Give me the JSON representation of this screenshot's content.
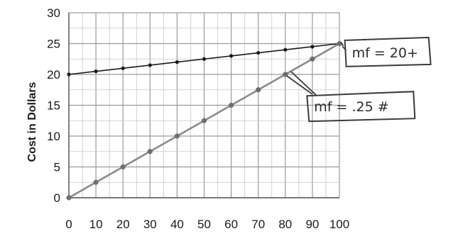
{
  "chart_data": {
    "type": "line",
    "ylabel": "Cost in Dollars",
    "xlabel": "",
    "xlim": [
      0,
      100
    ],
    "ylim": [
      0,
      30
    ],
    "x_ticks": [
      0,
      10,
      20,
      30,
      40,
      50,
      60,
      70,
      80,
      90,
      100
    ],
    "y_ticks": [
      0,
      5,
      10,
      15,
      20,
      25,
      30
    ],
    "grid": true,
    "series": [
      {
        "color": "#1a1a1a",
        "x": [
          0,
          10,
          20,
          30,
          40,
          50,
          60,
          70,
          80,
          90,
          100
        ],
        "y": [
          20,
          20.5,
          21,
          21.5,
          22,
          22.5,
          23,
          23.5,
          24,
          24.5,
          25
        ]
      },
      {
        "color": "#8a8a8a",
        "x": [
          0,
          10,
          20,
          30,
          40,
          50,
          60,
          70,
          80,
          90,
          100
        ],
        "y": [
          0,
          2.5,
          5,
          7.5,
          10,
          12.5,
          15,
          17.5,
          20,
          22.5,
          25
        ]
      }
    ],
    "annotations": [
      {
        "text": "mf = 20+",
        "x": 102,
        "y": 23
      },
      {
        "text": "mf = .25 #",
        "x": 88,
        "y": 14
      }
    ]
  }
}
